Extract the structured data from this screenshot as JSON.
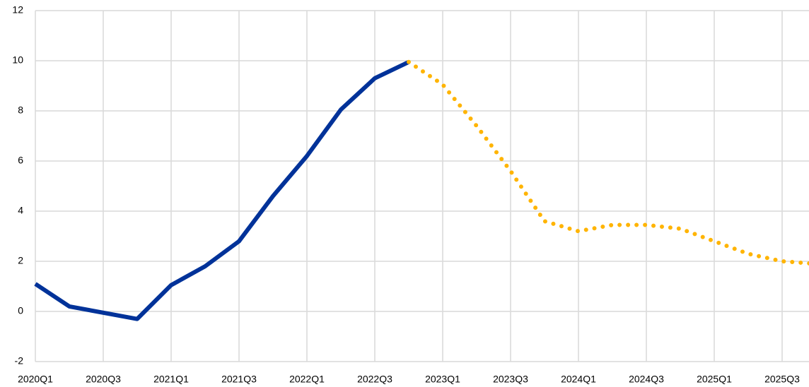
{
  "chart_data": {
    "type": "line",
    "categories": [
      "2020Q1",
      null,
      "2020Q3",
      null,
      "2021Q1",
      null,
      "2021Q3",
      null,
      "2022Q1",
      null,
      "2022Q3",
      null,
      "2023Q1",
      null,
      "2023Q3",
      null,
      "2024Q1",
      null,
      "2024Q3",
      null,
      "2025Q1",
      null,
      "2025Q3",
      null
    ],
    "series": [
      {
        "color": "#003299",
        "style": "solid",
        "values": [
          1.1,
          0.2,
          -0.05,
          -0.3,
          1.05,
          1.8,
          2.8,
          4.6,
          6.2,
          8.05,
          9.3,
          9.95,
          null,
          null,
          null,
          null,
          null,
          null,
          null,
          null,
          null,
          null,
          null,
          null
        ]
      },
      {
        "color": "#ffb400",
        "style": "dotted",
        "values": [
          null,
          null,
          null,
          null,
          null,
          null,
          null,
          null,
          null,
          null,
          null,
          9.95,
          9.05,
          7.4,
          5.6,
          3.6,
          3.2,
          3.45,
          3.45,
          3.3,
          2.8,
          2.3,
          2.0,
          1.9
        ]
      }
    ],
    "ylim": [
      -2,
      12
    ],
    "yticks": [
      -2,
      0,
      2,
      4,
      6,
      8,
      10,
      12
    ],
    "grid": true
  }
}
